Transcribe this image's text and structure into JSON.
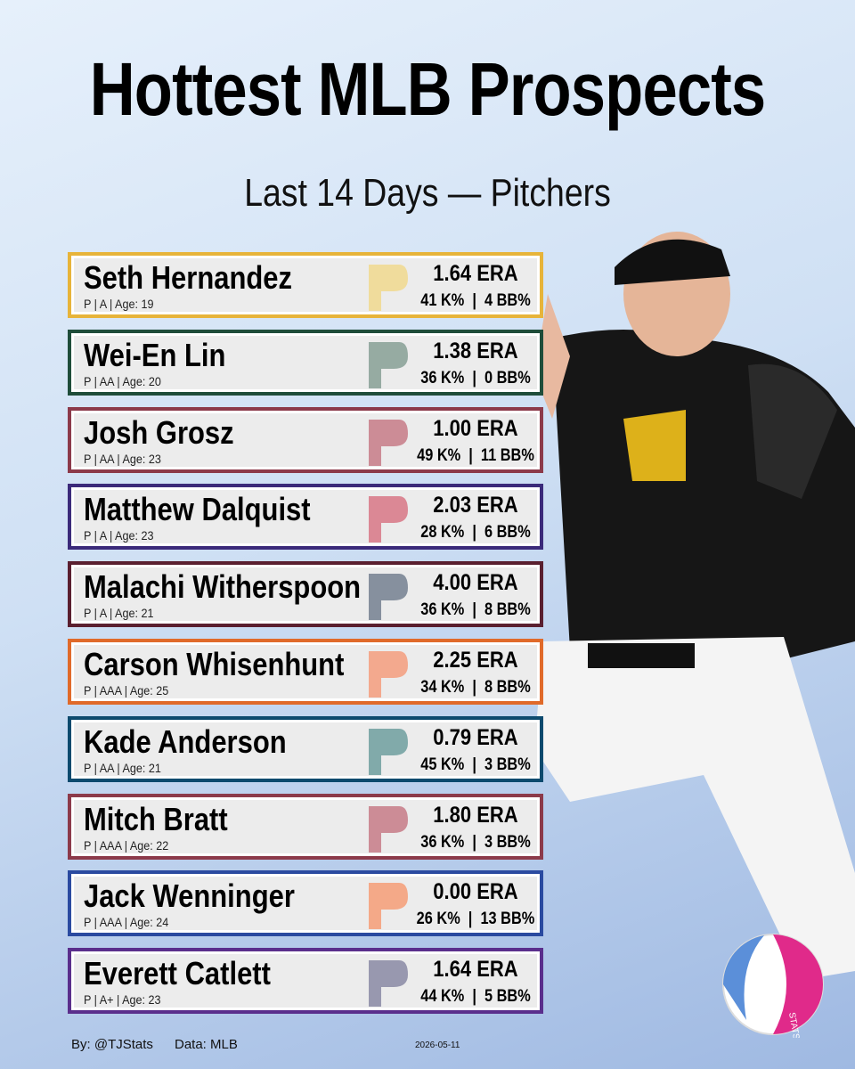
{
  "header": {
    "title": "Hottest MLB Prospects",
    "subtitle": "Last 14 Days — Pitchers"
  },
  "players": [
    {
      "name": "Seth Hernandez",
      "details": "P | A | Age: 19",
      "era": "1.64 ERA",
      "rates": "41 K%  |  4 BB%"
    },
    {
      "name": "Wei-En Lin",
      "details": "P | AA | Age: 20",
      "era": "1.38 ERA",
      "rates": "36 K%  |  0 BB%"
    },
    {
      "name": "Josh Grosz",
      "details": "P | AA | Age: 23",
      "era": "1.00 ERA",
      "rates": "49 K%  |  11 BB%"
    },
    {
      "name": "Matthew Dalquist",
      "details": "P | A | Age: 23",
      "era": "2.03 ERA",
      "rates": "28 K%  |  6 BB%"
    },
    {
      "name": "Malachi Witherspoon",
      "details": "P | A | Age: 21",
      "era": "4.00 ERA",
      "rates": "36 K%  |  8 BB%"
    },
    {
      "name": "Carson Whisenhunt",
      "details": "P | AAA | Age: 25",
      "era": "2.25 ERA",
      "rates": "34 K%  |  8 BB%"
    },
    {
      "name": "Kade Anderson",
      "details": "P | AA | Age: 21",
      "era": "0.79 ERA",
      "rates": "45 K%  |  3 BB%"
    },
    {
      "name": "Mitch Bratt",
      "details": "P | AAA | Age: 22",
      "era": "1.80 ERA",
      "rates": "36 K%  |  3 BB%"
    },
    {
      "name": "Jack Wenninger",
      "details": "P | AAA | Age: 24",
      "era": "0.00 ERA",
      "rates": "26 K%  |  13 BB%"
    },
    {
      "name": "Everett Catlett",
      "details": "P | A+ | Age: 23",
      "era": "1.64 ERA",
      "rates": "44 K%  |  5 BB%"
    }
  ],
  "footer": {
    "author": "By: @TJStats",
    "source": "Data: MLB",
    "date": "2026-05-11",
    "brand": "STATS"
  }
}
